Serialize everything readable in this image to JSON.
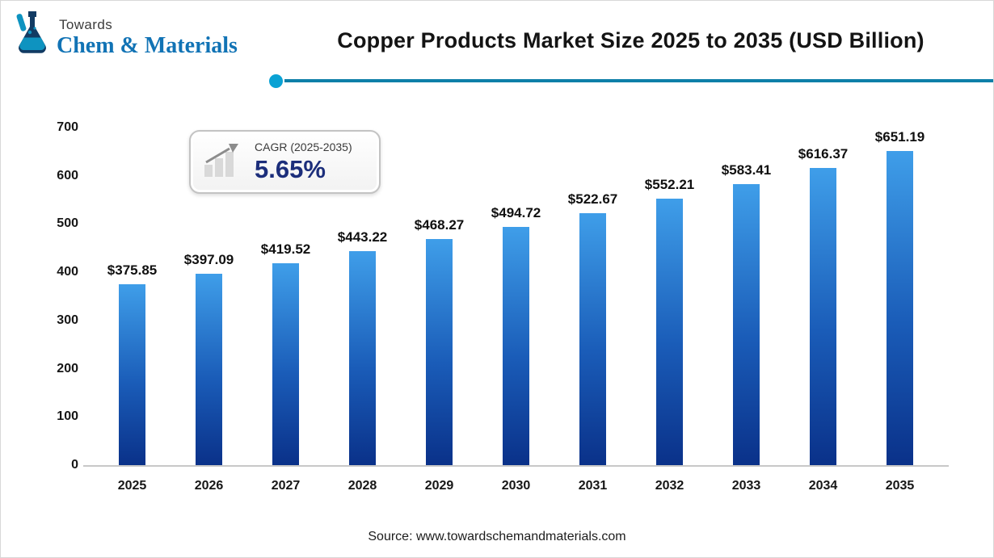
{
  "header": {
    "logo": {
      "top_text": "Towards",
      "brand_text": "Chem & Materials"
    },
    "title": "Copper Products Market Size 2025 to 2035 (USD Billion)"
  },
  "cagr_badge": {
    "label": "CAGR (2025-2035)",
    "value": "5.65%"
  },
  "chart_data": {
    "type": "bar",
    "title": "Copper Products Market Size 2025 to 2035 (USD Billion)",
    "categories": [
      "2025",
      "2026",
      "2027",
      "2028",
      "2029",
      "2030",
      "2031",
      "2032",
      "2033",
      "2034",
      "2035"
    ],
    "values": [
      375.85,
      397.09,
      419.52,
      443.22,
      468.27,
      494.72,
      522.67,
      552.21,
      583.41,
      616.37,
      651.19
    ],
    "value_labels": [
      "$375.85",
      "$397.09",
      "$419.52",
      "$443.22",
      "$468.27",
      "$494.72",
      "$522.67",
      "$552.21",
      "$583.41",
      "$616.37",
      "$651.19"
    ],
    "xlabel": "",
    "ylabel": "",
    "ylim": [
      0,
      700
    ],
    "yticks": [
      0,
      100,
      200,
      300,
      400,
      500,
      600,
      700
    ],
    "grid": false,
    "legend": "none",
    "bar_gradient_top": "#3f9ee9",
    "bar_gradient_mid": "#1a5cb8",
    "bar_gradient_bottom": "#0a3189"
  },
  "footer": {
    "source": "Source: www.towardschemandmaterials.com"
  },
  "colors": {
    "accent_teal_line": "#0d7fa8",
    "accent_teal_dot": "#0aa2d4",
    "brand_blue": "#1173b5",
    "cagr_value_color": "#1c2e7b",
    "title_color": "#141414"
  }
}
